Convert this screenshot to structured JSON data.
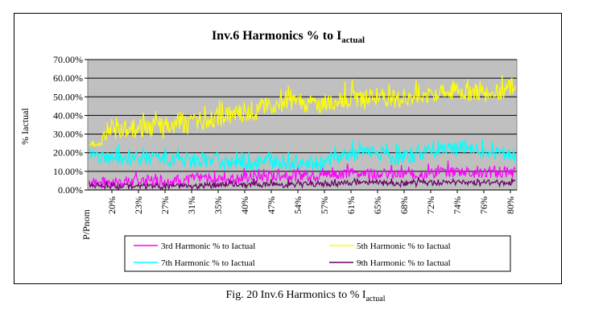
{
  "chart_data": {
    "type": "line",
    "title": "Inv.6 Harmonics % to I",
    "title_sub": "actual",
    "ylabel": "% Iactual",
    "xlabel": "P/Pnom",
    "ylim": [
      0,
      70
    ],
    "yticks": [
      "0.00%",
      "10.00%",
      "20.00%",
      "30.00%",
      "40.00%",
      "50.00%",
      "60.00%",
      "70.00%"
    ],
    "categories": [
      "20%",
      "23%",
      "27%",
      "31%",
      "35%",
      "40%",
      "47%",
      "54%",
      "57%",
      "61%",
      "65%",
      "68%",
      "72%",
      "74%",
      "76%",
      "80%"
    ],
    "grid": true,
    "legend_position": "bottom",
    "series": [
      {
        "name": "3rd Harmonic % to Iactual",
        "color": "#ff00ff",
        "values": [
          4,
          4,
          5,
          5,
          6,
          6,
          7,
          8,
          8,
          9,
          9,
          8,
          9,
          10,
          9,
          9
        ]
      },
      {
        "name": "5th Harmonic % to Iactual",
        "color": "#ffff00",
        "values": [
          31,
          32,
          33,
          35,
          37,
          40,
          43,
          48,
          45,
          49,
          50,
          49,
          51,
          53,
          52,
          55
        ]
      },
      {
        "name": "7th Harmonic % to Iactual",
        "color": "#00ffff",
        "values": [
          18,
          17,
          17,
          16,
          16,
          15,
          15,
          15,
          14,
          19,
          20,
          17,
          21,
          22,
          20,
          19
        ]
      },
      {
        "name": "9th Harmonic % to Iactual",
        "color": "#660066",
        "values": [
          2,
          2,
          2,
          2,
          2,
          3,
          3,
          3,
          3,
          4,
          4,
          3,
          4,
          4,
          4,
          4
        ]
      }
    ]
  },
  "caption": {
    "text": "Fig. 20 Inv.6 Harmonics to % I",
    "sub": "actual"
  }
}
